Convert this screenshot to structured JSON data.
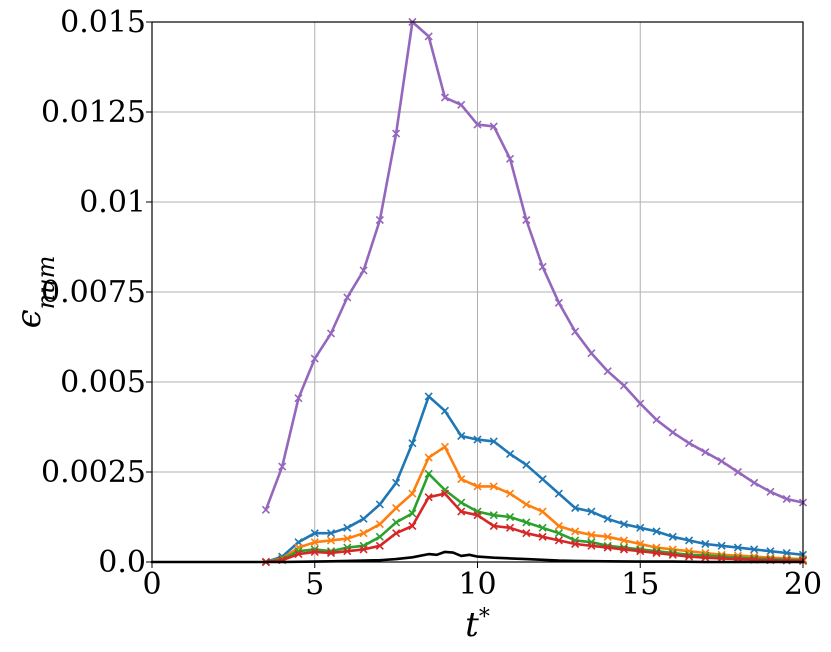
{
  "chart_data": {
    "type": "line",
    "title": "",
    "xlabel": "t^{*}",
    "ylabel": "ϵ_{num}",
    "xlim": [
      0,
      20
    ],
    "ylim": [
      0,
      0.015
    ],
    "grid": true,
    "x_ticks": [
      0,
      5,
      10,
      15,
      20
    ],
    "x_tick_labels": [
      "0",
      "5",
      "10",
      "15",
      "20"
    ],
    "y_ticks": [
      0,
      0.0025,
      0.005,
      0.0075,
      0.01,
      0.0125,
      0.015
    ],
    "y_tick_labels": [
      "0.0",
      "0.0025",
      "0.005",
      "0.0075",
      "0.01",
      "0.0125",
      "0.015"
    ],
    "series": [
      {
        "color": "#9467bd",
        "marker": "x",
        "x": [
          3.5,
          4.0,
          4.5,
          5.0,
          5.5,
          6.0,
          6.5,
          7.0,
          7.5,
          8.0,
          8.5,
          9.0,
          9.5,
          10.0,
          10.5,
          11.0,
          11.5,
          12.0,
          12.5,
          13.0,
          13.5,
          14.0,
          14.5,
          15.0,
          15.5,
          16.0,
          16.5,
          17.0,
          17.5,
          18.0,
          18.5,
          19.0,
          19.5,
          20.0
        ],
        "values": [
          0.00145,
          0.00265,
          0.00455,
          0.00565,
          0.00635,
          0.00735,
          0.0081,
          0.0095,
          0.0119,
          0.015,
          0.0146,
          0.0129,
          0.0127,
          0.01215,
          0.0121,
          0.0112,
          0.0095,
          0.0082,
          0.0072,
          0.0064,
          0.0058,
          0.0053,
          0.0049,
          0.0044,
          0.00395,
          0.0036,
          0.0033,
          0.00305,
          0.0028,
          0.0025,
          0.0022,
          0.00195,
          0.00175,
          0.00165
        ]
      },
      {
        "color": "#1f77b4",
        "marker": "x",
        "x": [
          3.5,
          4.0,
          4.5,
          5.0,
          5.5,
          6.0,
          6.5,
          7.0,
          7.5,
          8.0,
          8.5,
          9.0,
          9.5,
          10.0,
          10.5,
          11.0,
          11.5,
          12.0,
          12.5,
          13.0,
          13.5,
          14.0,
          14.5,
          15.0,
          15.5,
          16.0,
          16.5,
          17.0,
          17.5,
          18.0,
          18.5,
          19.0,
          19.5,
          20.0
        ],
        "values": [
          0.0,
          0.00015,
          0.00055,
          0.0008,
          0.0008,
          0.00095,
          0.0012,
          0.0016,
          0.0022,
          0.0033,
          0.0046,
          0.0042,
          0.0035,
          0.0034,
          0.00335,
          0.003,
          0.0027,
          0.0023,
          0.0019,
          0.0015,
          0.0014,
          0.0012,
          0.00105,
          0.00095,
          0.00085,
          0.0007,
          0.0006,
          0.0005,
          0.00045,
          0.0004,
          0.00035,
          0.0003,
          0.00025,
          0.0002
        ]
      },
      {
        "color": "#ff7f0e",
        "marker": "x",
        "x": [
          3.5,
          4.0,
          4.5,
          5.0,
          5.5,
          6.0,
          6.5,
          7.0,
          7.5,
          8.0,
          8.5,
          9.0,
          9.5,
          10.0,
          10.5,
          11.0,
          11.5,
          12.0,
          12.5,
          13.0,
          13.5,
          14.0,
          14.5,
          15.0,
          15.5,
          16.0,
          16.5,
          17.0,
          17.5,
          18.0,
          18.5,
          19.0,
          19.5,
          20.0
        ],
        "values": [
          0.0,
          0.0001,
          0.0004,
          0.00055,
          0.0006,
          0.00065,
          0.0008,
          0.00105,
          0.0015,
          0.0019,
          0.0029,
          0.0032,
          0.0023,
          0.0021,
          0.0021,
          0.0019,
          0.0016,
          0.0014,
          0.001,
          0.00085,
          0.00075,
          0.0007,
          0.0006,
          0.0005,
          0.0004,
          0.00035,
          0.0003,
          0.00025,
          0.0002,
          0.00018,
          0.00015,
          0.00012,
          0.0001,
          8e-05
        ]
      },
      {
        "color": "#2ca02c",
        "marker": "x",
        "x": [
          3.5,
          4.0,
          4.5,
          5.0,
          5.5,
          6.0,
          6.5,
          7.0,
          7.5,
          8.0,
          8.5,
          9.0,
          9.5,
          10.0,
          10.5,
          11.0,
          11.5,
          12.0,
          12.5,
          13.0,
          13.5,
          14.0,
          14.5,
          15.0,
          15.5,
          16.0,
          16.5,
          17.0,
          17.5,
          18.0,
          18.5,
          19.0,
          19.5,
          20.0
        ],
        "values": [
          0.0,
          8e-05,
          0.0003,
          0.00035,
          0.0003,
          0.0004,
          0.00045,
          0.0007,
          0.0011,
          0.00135,
          0.00245,
          0.002,
          0.00165,
          0.0014,
          0.0013,
          0.00125,
          0.0011,
          0.00095,
          0.0008,
          0.0006,
          0.00055,
          0.00045,
          0.0004,
          0.00035,
          0.0003,
          0.00025,
          0.0002,
          0.00018,
          0.00015,
          0.00012,
          0.0001,
          8e-05,
          6e-05,
          5e-05
        ]
      },
      {
        "color": "#d62728",
        "marker": "x",
        "x": [
          3.5,
          4.0,
          4.5,
          5.0,
          5.5,
          6.0,
          6.5,
          7.0,
          7.5,
          8.0,
          8.5,
          9.0,
          9.5,
          10.0,
          10.5,
          11.0,
          11.5,
          12.0,
          12.5,
          13.0,
          13.5,
          14.0,
          14.5,
          15.0,
          15.5,
          16.0,
          16.5,
          17.0,
          17.5,
          18.0,
          18.5,
          19.0,
          19.5,
          20.0
        ],
        "values": [
          0.0,
          5e-05,
          0.00022,
          0.00028,
          0.00025,
          0.0003,
          0.00035,
          0.00045,
          0.0008,
          0.001,
          0.0018,
          0.0019,
          0.0014,
          0.0013,
          0.001,
          0.00095,
          0.0008,
          0.0007,
          0.0006,
          0.0005,
          0.00045,
          0.0004,
          0.00035,
          0.0003,
          0.00025,
          0.0002,
          0.00015,
          0.00012,
          0.0001,
          8e-05,
          6e-05,
          5e-05,
          4e-05,
          3e-05
        ]
      },
      {
        "color": "#000000",
        "marker": "none",
        "x": [
          0,
          1,
          2,
          3,
          4,
          5,
          5.5,
          6,
          6.5,
          7,
          7.5,
          8,
          8.5,
          8.75,
          9,
          9.25,
          9.5,
          9.75,
          10,
          10.5,
          11,
          11.5,
          12,
          12.5,
          13,
          14,
          15,
          16,
          17,
          18,
          19,
          20
        ],
        "values": [
          0,
          0,
          0,
          0,
          0,
          1e-05,
          2e-05,
          3e-05,
          4e-05,
          5e-05,
          8e-05,
          0.00013,
          0.00022,
          0.0002,
          0.00028,
          0.00026,
          0.00017,
          0.0002,
          0.00015,
          0.00012,
          0.0001,
          8e-05,
          6e-05,
          4e-05,
          3e-05,
          2e-05,
          1e-05,
          1e-05,
          0,
          0,
          0,
          0
        ]
      }
    ]
  }
}
